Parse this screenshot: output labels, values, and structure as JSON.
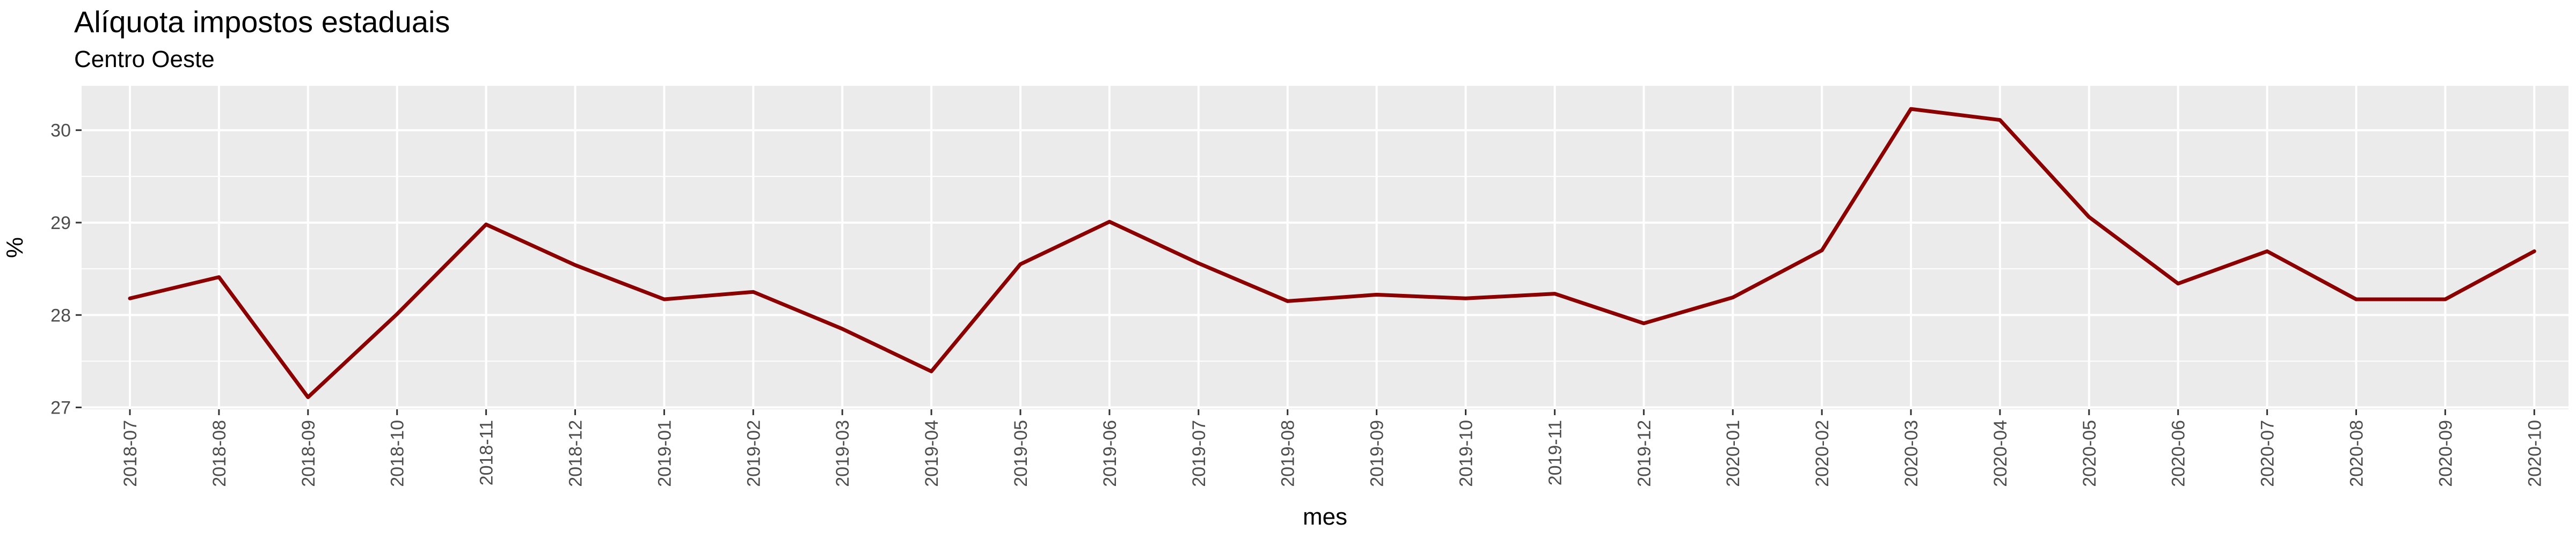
{
  "chart_data": {
    "type": "line",
    "title": "Alíquota impostos estaduais",
    "subtitle": "Centro Oeste",
    "xlabel": "mes",
    "ylabel": "%",
    "ylim": [
      26.98,
      30.48
    ],
    "yticks": [
      27,
      28,
      29,
      30
    ],
    "grid": true,
    "legend": "none",
    "colors": {
      "line": "#8B0000",
      "panel": "#EBEBEB",
      "grid": "#FFFFFF"
    },
    "categories": [
      "2018-07",
      "2018-08",
      "2018-09",
      "2018-10",
      "2018-11",
      "2018-12",
      "2019-01",
      "2019-02",
      "2019-03",
      "2019-04",
      "2019-05",
      "2019-06",
      "2019-07",
      "2019-08",
      "2019-09",
      "2019-10",
      "2019-11",
      "2019-12",
      "2020-01",
      "2020-02",
      "2020-03",
      "2020-04",
      "2020-05",
      "2020-06",
      "2020-07",
      "2020-08",
      "2020-09",
      "2020-10"
    ],
    "series": [
      {
        "values": [
          28.18,
          28.41,
          27.11,
          28.01,
          28.98,
          28.54,
          28.17,
          28.25,
          27.85,
          27.39,
          28.55,
          29.01,
          28.56,
          28.15,
          28.22,
          28.18,
          28.23,
          27.91,
          28.19,
          28.7,
          30.23,
          30.11,
          29.06,
          28.34,
          28.69,
          28.17,
          28.17,
          28.69
        ]
      }
    ]
  }
}
